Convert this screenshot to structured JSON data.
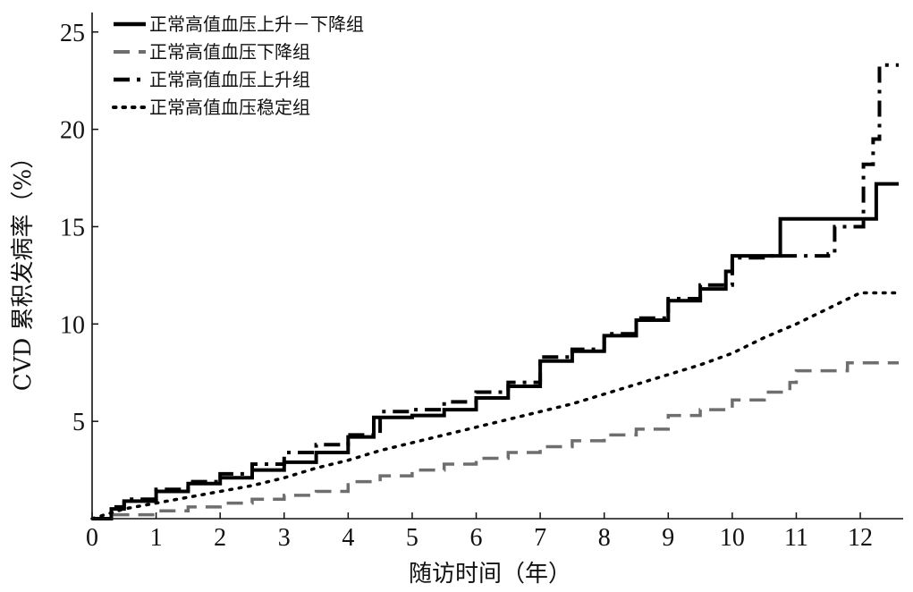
{
  "chart_data": {
    "type": "line",
    "xlabel": "随访时间（年）",
    "ylabel": "CVD 累积发病率（%）",
    "xlim": [
      0,
      12.6
    ],
    "ylim": [
      0,
      26
    ],
    "x_ticks": [
      "0",
      "1",
      "2",
      "3",
      "4",
      "5",
      "6",
      "7",
      "8",
      "9",
      "10",
      "11",
      "12"
    ],
    "y_ticks": [
      "5",
      "10",
      "15",
      "20",
      "25"
    ],
    "legend_position": "top-left",
    "grid": false,
    "series": [
      {
        "name": "正常高值血压上升－下降组",
        "color": "#000000",
        "line_style": "solid",
        "stroke_width": 4,
        "step": true,
        "x": [
          0,
          0.3,
          0.5,
          1.0,
          1.5,
          2.0,
          2.5,
          3.0,
          3.5,
          4.0,
          4.4,
          5.0,
          5.5,
          6.0,
          6.5,
          7.0,
          7.5,
          8.0,
          8.5,
          9.0,
          9.5,
          9.9,
          10.0,
          10.75,
          12.25,
          12.6
        ],
        "y": [
          0,
          0.5,
          0.9,
          1.4,
          1.8,
          2.1,
          2.5,
          2.9,
          3.4,
          4.2,
          5.2,
          5.3,
          5.6,
          6.2,
          6.8,
          8.1,
          8.6,
          9.4,
          10.2,
          11.2,
          11.8,
          12.7,
          13.5,
          15.4,
          17.2,
          17.2
        ]
      },
      {
        "name": "正常高值血压下降组",
        "color": "#6e6e6e",
        "line_style": "dashed",
        "stroke_width": 3.5,
        "step": true,
        "x": [
          0,
          0.3,
          1.0,
          1.5,
          2.0,
          2.5,
          3.0,
          3.5,
          4.0,
          4.5,
          5.0,
          5.5,
          6.0,
          6.5,
          7.0,
          7.5,
          8.0,
          8.5,
          9.0,
          9.5,
          10.0,
          10.5,
          10.9,
          11.0,
          11.8,
          12.6
        ],
        "y": [
          0,
          0.2,
          0.4,
          0.6,
          0.8,
          1.0,
          1.2,
          1.4,
          1.9,
          2.2,
          2.5,
          2.8,
          3.1,
          3.4,
          3.7,
          4.0,
          4.3,
          4.6,
          5.3,
          5.6,
          6.1,
          6.5,
          7.0,
          7.6,
          8.0,
          8.0
        ]
      },
      {
        "name": "正常高值血压上升组",
        "color": "#000000",
        "line_style": "dash-dot",
        "stroke_width": 4,
        "step": true,
        "x": [
          0,
          0.3,
          0.5,
          1.0,
          1.5,
          2.0,
          2.5,
          3.0,
          3.5,
          4.0,
          4.5,
          5.0,
          5.5,
          6.0,
          6.5,
          7.0,
          7.5,
          8.0,
          8.5,
          9.0,
          9.5,
          10.0,
          10.6,
          11.5,
          11.6,
          12.05,
          12.2,
          12.3,
          12.6
        ],
        "y": [
          0,
          0.6,
          1.0,
          1.5,
          1.9,
          2.3,
          2.8,
          3.4,
          3.8,
          4.3,
          5.5,
          5.6,
          6.0,
          6.5,
          7.0,
          8.3,
          8.7,
          9.5,
          10.3,
          11.3,
          12.0,
          13.4,
          13.5,
          13.6,
          15.0,
          18.2,
          19.5,
          23.3,
          23.3
        ]
      },
      {
        "name": "正常高值血压稳定组",
        "color": "#000000",
        "line_style": "dotted",
        "stroke_width": 3.5,
        "step": false,
        "x": [
          0,
          0.5,
          1.0,
          1.5,
          2.0,
          2.5,
          3.0,
          3.5,
          4.0,
          4.5,
          5.0,
          5.5,
          6.0,
          6.5,
          7.0,
          7.5,
          8.0,
          8.5,
          9.0,
          9.5,
          10.0,
          10.5,
          11.0,
          11.5,
          12.0,
          12.6
        ],
        "y": [
          0,
          0.5,
          0.8,
          1.1,
          1.4,
          1.7,
          2.1,
          2.6,
          3.0,
          3.5,
          3.9,
          4.3,
          4.7,
          5.1,
          5.5,
          5.9,
          6.4,
          6.9,
          7.4,
          7.9,
          8.5,
          9.3,
          10.0,
          10.8,
          11.6,
          11.6
        ]
      }
    ]
  }
}
